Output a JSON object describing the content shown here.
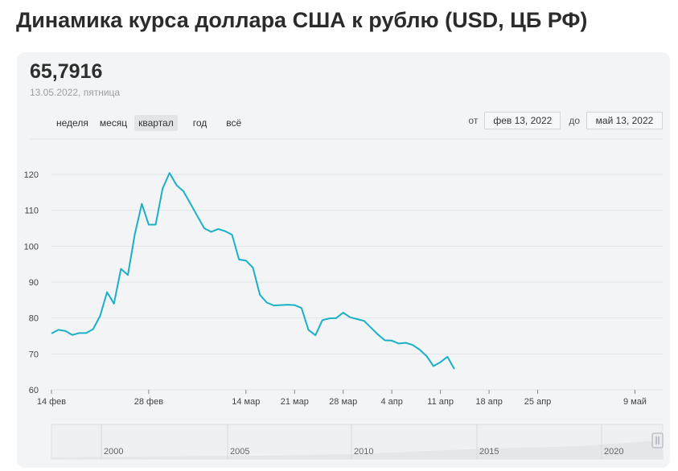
{
  "page": {
    "title": "Динамика курса доллара США к рублю (USD, ЦБ РФ)"
  },
  "summary": {
    "value": "65,7916",
    "date": "13.05.2022, пятница"
  },
  "period_tabs": [
    {
      "label": "неделя",
      "active": false
    },
    {
      "label": "месяц",
      "active": false
    },
    {
      "label": "квартал",
      "active": true
    },
    {
      "label": "год",
      "active": false
    },
    {
      "label": "всё",
      "active": false
    }
  ],
  "range": {
    "from_label": "от",
    "from_value": "фев 13, 2022",
    "to_label": "до",
    "to_value": "май 13, 2022"
  },
  "colors": {
    "line": "#1bb0c6",
    "grid": "#e0e3e6",
    "background": "#f2f4f6"
  },
  "chart_data": {
    "type": "line",
    "title": "Динамика курса доллара США к рублю (USD, ЦБ РФ)",
    "xlabel": "",
    "ylabel": "",
    "ylim": [
      60,
      120
    ],
    "xlim": [
      "2022-02-14",
      "2022-05-13"
    ],
    "y_ticks": [
      60,
      70,
      80,
      90,
      100,
      110,
      120
    ],
    "x_ticks": [
      {
        "date": "2022-02-14",
        "label": "14 фев"
      },
      {
        "date": "2022-02-28",
        "label": "28 фев"
      },
      {
        "date": "2022-03-14",
        "label": "14 мар"
      },
      {
        "date": "2022-03-21",
        "label": "21 мар"
      },
      {
        "date": "2022-03-28",
        "label": "28 мар"
      },
      {
        "date": "2022-04-04",
        "label": "4 апр"
      },
      {
        "date": "2022-04-11",
        "label": "11 апр"
      },
      {
        "date": "2022-04-18",
        "label": "18 апр"
      },
      {
        "date": "2022-04-25",
        "label": "25 апр"
      },
      {
        "date": "2022-05-09",
        "label": "9 май"
      }
    ],
    "grid": true,
    "series": [
      {
        "points": [
          [
            "2022-02-14",
            75.7
          ],
          [
            "2022-02-15",
            76.7
          ],
          [
            "2022-02-16",
            76.4
          ],
          [
            "2022-02-17",
            75.3
          ],
          [
            "2022-02-18",
            75.8
          ],
          [
            "2022-02-19",
            75.8
          ],
          [
            "2022-02-20",
            76.9
          ],
          [
            "2022-02-21",
            80.6
          ],
          [
            "2022-02-22",
            87.2
          ],
          [
            "2022-02-23",
            84.0
          ],
          [
            "2022-02-24",
            93.7
          ],
          [
            "2022-02-25",
            92.0
          ],
          [
            "2022-02-26",
            103.3
          ],
          [
            "2022-02-27",
            111.8
          ],
          [
            "2022-02-28",
            106.0
          ],
          [
            "2022-03-01",
            106.0
          ],
          [
            "2022-03-02",
            116.1
          ],
          [
            "2022-03-03",
            120.4
          ],
          [
            "2022-03-04",
            117.0
          ],
          [
            "2022-03-05",
            115.3
          ],
          [
            "2022-03-06",
            111.9
          ],
          [
            "2022-03-07",
            108.4
          ],
          [
            "2022-03-08",
            105.0
          ],
          [
            "2022-03-09",
            104.0
          ],
          [
            "2022-03-10",
            104.8
          ],
          [
            "2022-03-11",
            104.2
          ],
          [
            "2022-03-12",
            103.2
          ],
          [
            "2022-03-13",
            96.3
          ],
          [
            "2022-03-14",
            96.0
          ],
          [
            "2022-03-15",
            94.0
          ],
          [
            "2022-03-16",
            86.5
          ],
          [
            "2022-03-17",
            84.3
          ],
          [
            "2022-03-18",
            83.5
          ],
          [
            "2022-03-19",
            83.6
          ],
          [
            "2022-03-20",
            83.7
          ],
          [
            "2022-03-21",
            83.6
          ],
          [
            "2022-03-22",
            82.8
          ],
          [
            "2022-03-23",
            76.7
          ],
          [
            "2022-03-24",
            75.2
          ],
          [
            "2022-03-25",
            79.4
          ],
          [
            "2022-03-26",
            79.9
          ],
          [
            "2022-03-27",
            80.0
          ],
          [
            "2022-03-28",
            81.5
          ],
          [
            "2022-03-29",
            80.2
          ],
          [
            "2022-03-30",
            79.7
          ],
          [
            "2022-03-31",
            79.2
          ],
          [
            "2022-04-01",
            77.3
          ],
          [
            "2022-04-02",
            75.4
          ],
          [
            "2022-04-03",
            73.8
          ],
          [
            "2022-04-04",
            73.7
          ],
          [
            "2022-04-05",
            72.9
          ],
          [
            "2022-04-06",
            73.1
          ],
          [
            "2022-04-07",
            72.5
          ],
          [
            "2022-04-08",
            71.2
          ],
          [
            "2022-04-09",
            69.4
          ],
          [
            "2022-04-10",
            66.6
          ],
          [
            "2022-04-11",
            67.7
          ],
          [
            "2022-04-12",
            69.2
          ],
          [
            "2022-04-13",
            65.8
          ]
        ]
      }
    ]
  },
  "navigator": {
    "year_labels": [
      "2000",
      "2005",
      "2010",
      "2015",
      "2020"
    ]
  }
}
